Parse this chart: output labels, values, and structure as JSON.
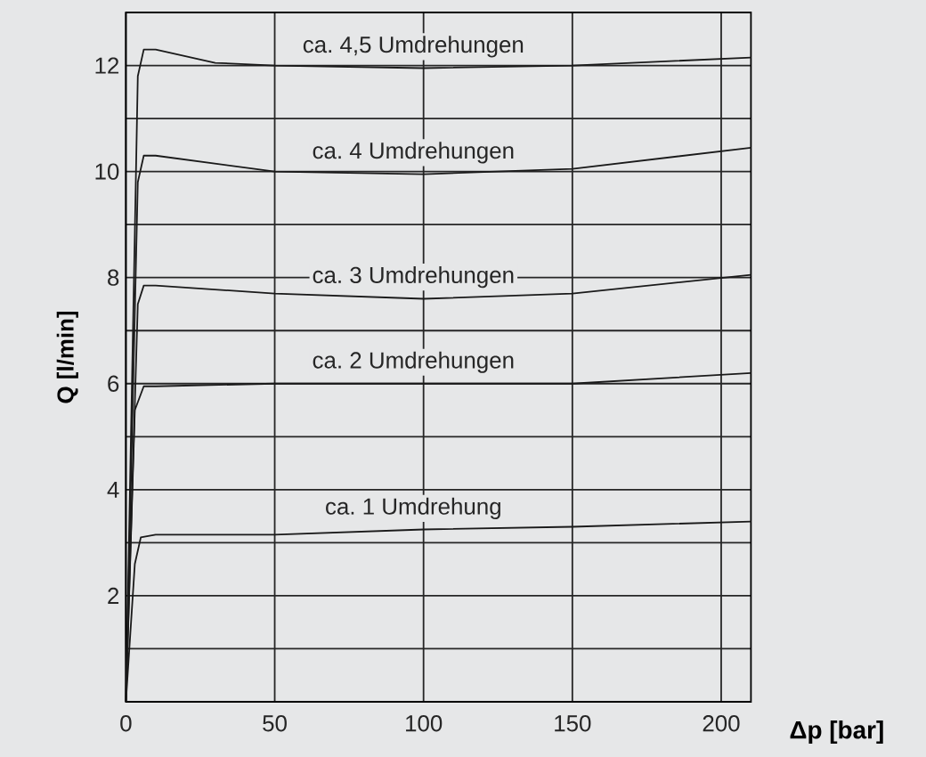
{
  "chart_data": {
    "type": "line",
    "xlabel": "Δp [bar]",
    "ylabel": "Q [l/min]",
    "xlim": [
      0,
      210
    ],
    "ylim": [
      0,
      13
    ],
    "xticks": [
      0,
      50,
      100,
      150,
      200
    ],
    "yticks": [
      {
        "value": 0,
        "label": null
      },
      {
        "value": 1,
        "label": null
      },
      2,
      {
        "value": 3,
        "label": null
      },
      4,
      {
        "value": 5,
        "label": null
      },
      6,
      {
        "value": 7,
        "label": null
      },
      8,
      {
        "value": 9,
        "label": null
      },
      10,
      {
        "value": 11,
        "label": null
      },
      12
    ],
    "grid": true,
    "series": [
      {
        "name": "ca. 1 Umdrehung",
        "color": "#1a1a1a",
        "x": [
          0,
          3,
          5,
          10,
          50,
          100,
          150,
          210
        ],
        "values": [
          0,
          2.6,
          3.1,
          3.15,
          3.15,
          3.25,
          3.3,
          3.4
        ]
      },
      {
        "name": "ca. 2 Umdrehungen",
        "color": "#1a1a1a",
        "x": [
          0,
          3,
          6,
          10,
          50,
          100,
          150,
          210
        ],
        "values": [
          0,
          5.5,
          5.95,
          5.95,
          6.0,
          6.0,
          6.0,
          6.2
        ]
      },
      {
        "name": "ca. 3 Umdrehungen",
        "color": "#1a1a1a",
        "x": [
          0,
          4,
          6,
          10,
          50,
          100,
          150,
          210
        ],
        "values": [
          0,
          7.5,
          7.85,
          7.85,
          7.7,
          7.6,
          7.7,
          8.05
        ]
      },
      {
        "name": "ca. 4 Umdrehungen",
        "color": "#1a1a1a",
        "x": [
          0,
          4,
          6,
          10,
          50,
          100,
          150,
          210
        ],
        "values": [
          0,
          9.8,
          10.3,
          10.3,
          10.0,
          9.95,
          10.05,
          10.45
        ]
      },
      {
        "name": "ca. 4,5 Umdrehungen",
        "color": "#1a1a1a",
        "x": [
          0,
          4,
          6,
          10,
          30,
          50,
          100,
          150,
          210
        ],
        "values": [
          0,
          11.8,
          12.3,
          12.3,
          12.05,
          12.0,
          11.95,
          12.0,
          12.15
        ]
      }
    ]
  }
}
